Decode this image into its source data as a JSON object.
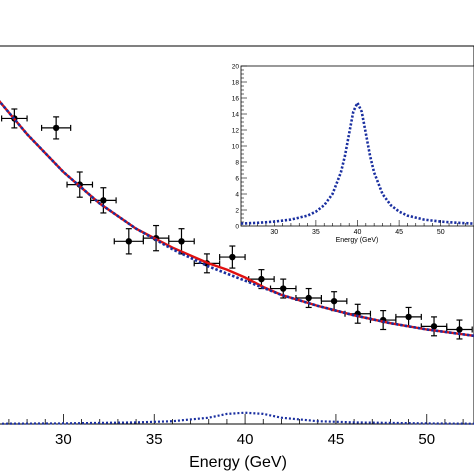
{
  "chart_data": [
    {
      "type": "scatter",
      "xlabel": "Energy (GeV)",
      "xlim": [
        26.4,
        52.6
      ],
      "ylim": [
        0,
        120
      ],
      "x_ticks": [
        "30",
        "35",
        "40",
        "45",
        "50"
      ],
      "series": [
        {
          "kind": "points_with_errorbars",
          "color": "#000000",
          "points": [
            {
              "x": 27.3,
              "y": 97.0,
              "xerr": 0.7,
              "yerr": 3.0
            },
            {
              "x": 29.6,
              "y": 94.0,
              "xerr": 0.8,
              "yerr": 3.5
            },
            {
              "x": 30.9,
              "y": 76.0,
              "xerr": 0.7,
              "yerr": 4.0
            },
            {
              "x": 32.2,
              "y": 71.0,
              "xerr": 0.7,
              "yerr": 4.0
            },
            {
              "x": 33.6,
              "y": 58.0,
              "xerr": 0.8,
              "yerr": 4.0
            },
            {
              "x": 35.1,
              "y": 59.0,
              "xerr": 0.7,
              "yerr": 4.0
            },
            {
              "x": 36.5,
              "y": 58.0,
              "xerr": 0.7,
              "yerr": 4.0
            },
            {
              "x": 37.9,
              "y": 51.0,
              "xerr": 0.7,
              "yerr": 3.0
            },
            {
              "x": 39.3,
              "y": 53.0,
              "xerr": 0.7,
              "yerr": 3.5
            },
            {
              "x": 40.9,
              "y": 46.0,
              "xerr": 0.7,
              "yerr": 3.0
            },
            {
              "x": 42.1,
              "y": 43.0,
              "xerr": 0.7,
              "yerr": 3.0
            },
            {
              "x": 43.5,
              "y": 40.0,
              "xerr": 0.7,
              "yerr": 3.0
            },
            {
              "x": 44.9,
              "y": 39.0,
              "xerr": 0.7,
              "yerr": 3.0
            },
            {
              "x": 46.2,
              "y": 35.0,
              "xerr": 0.7,
              "yerr": 3.0
            },
            {
              "x": 47.6,
              "y": 33.0,
              "xerr": 0.7,
              "yerr": 3.0
            },
            {
              "x": 49.0,
              "y": 34.0,
              "xerr": 0.7,
              "yerr": 3.0
            },
            {
              "x": 50.4,
              "y": 31.0,
              "xerr": 0.7,
              "yerr": 3.0
            },
            {
              "x": 51.8,
              "y": 30.0,
              "xerr": 0.7,
              "yerr": 3.0
            }
          ]
        },
        {
          "kind": "solid_line",
          "color": "#e01010",
          "x": [
            26.4,
            28,
            30,
            32,
            34,
            36,
            38,
            39,
            40,
            41,
            42,
            44,
            46,
            48,
            50,
            52.6
          ],
          "y": [
            103.0,
            92.0,
            80.0,
            70.0,
            62.0,
            56.0,
            51.0,
            49.0,
            46.5,
            43.5,
            41.0,
            37.5,
            34.5,
            32.0,
            30.0,
            28.0
          ]
        },
        {
          "kind": "dotted_line",
          "color": "#1a2fa0",
          "x": [
            26.4,
            28,
            30,
            32,
            34,
            36,
            38,
            40,
            42,
            44,
            46,
            48,
            50,
            52.6
          ],
          "y": [
            103.0,
            92.0,
            80.0,
            70.0,
            62.0,
            55.5,
            50.0,
            45.5,
            41.0,
            37.5,
            34.5,
            32.0,
            30.0,
            28.0
          ]
        },
        {
          "kind": "dotted_peak",
          "color": "#1a2fa0",
          "x": [
            26.4,
            30,
            34,
            36,
            38,
            39,
            40,
            41,
            42,
            44,
            46,
            50,
            52.6
          ],
          "y": [
            0.1,
            0.2,
            0.5,
            0.9,
            2.0,
            3.2,
            3.6,
            3.2,
            2.0,
            0.9,
            0.5,
            0.2,
            0.1
          ]
        }
      ]
    },
    {
      "type": "line",
      "xlabel": "Energy (GeV)",
      "xlim": [
        26,
        54
      ],
      "ylim": [
        0,
        20
      ],
      "x_ticks": [
        "30",
        "35",
        "40",
        "45",
        "50"
      ],
      "y_ticks": [
        "0",
        "2",
        "4",
        "6",
        "8",
        "10",
        "12",
        "14",
        "16",
        "18",
        "20"
      ],
      "series": [
        {
          "kind": "dotted_line",
          "color": "#1a2fa0",
          "x": [
            26,
            28,
            30,
            32,
            34,
            35,
            36,
            37,
            38,
            38.5,
            39,
            39.5,
            40,
            40.5,
            41,
            41.5,
            42,
            43,
            44,
            45,
            46,
            48,
            50,
            52,
            54
          ],
          "y": [
            0.3,
            0.4,
            0.55,
            0.8,
            1.3,
            1.8,
            2.6,
            4.0,
            6.7,
            8.8,
            11.6,
            14.3,
            15.4,
            14.3,
            11.6,
            8.8,
            6.7,
            4.0,
            2.6,
            1.8,
            1.3,
            0.8,
            0.55,
            0.4,
            0.3
          ]
        }
      ]
    }
  ]
}
